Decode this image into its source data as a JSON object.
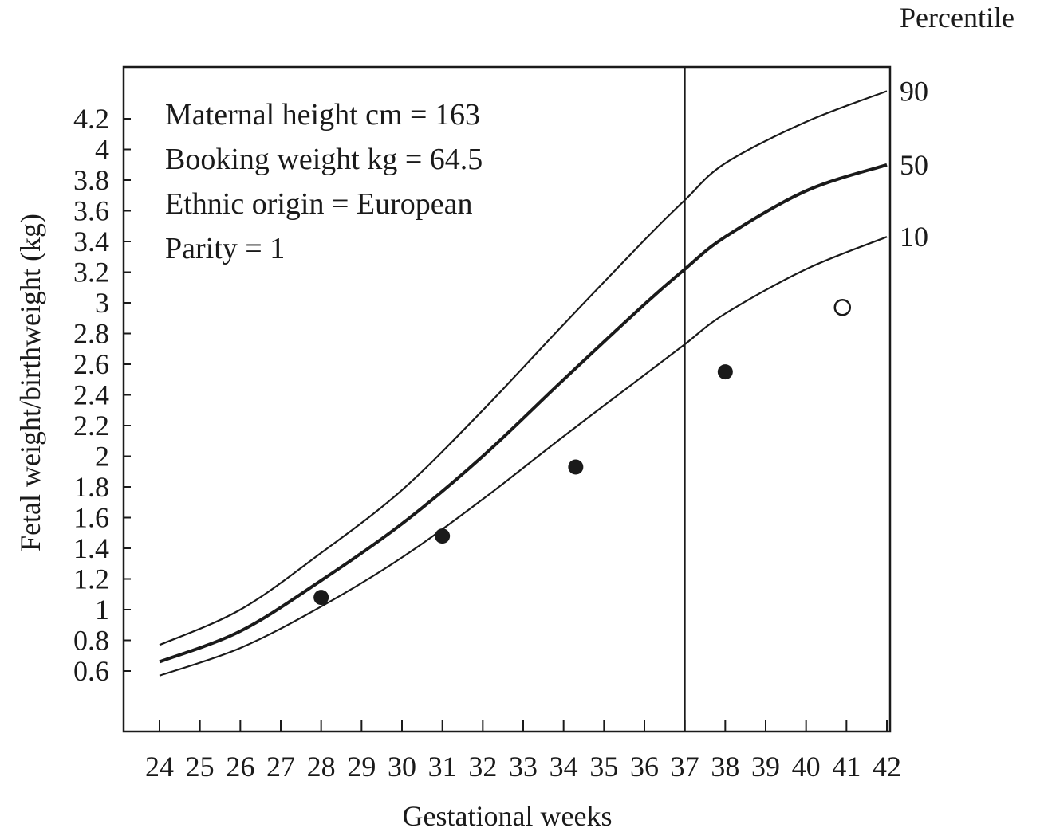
{
  "chart_data": {
    "type": "line",
    "xlabel": "Gestational weeks",
    "ylabel": "Fetal weight/birthweight (kg)",
    "right_axis_title": "Percentile",
    "x_ticks": [
      24,
      25,
      26,
      27,
      28,
      29,
      30,
      31,
      32,
      33,
      34,
      35,
      36,
      37,
      38,
      39,
      40,
      41,
      42
    ],
    "y_ticks": [
      0.6,
      0.8,
      1,
      1.2,
      1.4,
      1.6,
      1.8,
      2,
      2.2,
      2.4,
      2.6,
      2.8,
      3,
      3.2,
      3.4,
      3.6,
      3.8,
      4,
      4.2
    ],
    "y_tick_labels": [
      "0.6",
      "0.8",
      "1",
      "1.2",
      "1.4",
      "1.6",
      "1.8",
      "2",
      "2.2",
      "2.4",
      "2.6",
      "2.8",
      "3",
      "3.2",
      "3.4",
      "3.6",
      "3.8",
      "4",
      "4.2"
    ],
    "xlim": [
      24,
      42
    ],
    "grid": false,
    "annotations": [
      "Maternal height cm = 163",
      "Booking weight kg = 64.5",
      "Ethnic origin = European",
      "Parity = 1"
    ],
    "vertical_line_x": 37,
    "x": [
      24,
      26,
      28,
      30,
      32,
      34,
      36,
      37,
      38,
      40,
      42
    ],
    "series": [
      {
        "name": "90",
        "values": [
          0.77,
          1.0,
          1.37,
          1.78,
          2.3,
          2.86,
          3.41,
          3.67,
          3.91,
          4.18,
          4.38
        ]
      },
      {
        "name": "50",
        "values": [
          0.66,
          0.86,
          1.19,
          1.56,
          2.0,
          2.5,
          2.99,
          3.22,
          3.43,
          3.73,
          3.9
        ]
      },
      {
        "name": "10",
        "values": [
          0.57,
          0.75,
          1.02,
          1.34,
          1.72,
          2.13,
          2.53,
          2.73,
          2.93,
          3.22,
          3.43
        ]
      }
    ],
    "points": [
      {
        "x": 28,
        "y": 1.08,
        "style": "filled"
      },
      {
        "x": 31,
        "y": 1.48,
        "style": "filled"
      },
      {
        "x": 34.3,
        "y": 1.93,
        "style": "filled"
      },
      {
        "x": 38,
        "y": 2.55,
        "style": "filled"
      },
      {
        "x": 40.9,
        "y": 2.97,
        "style": "open"
      }
    ],
    "colors": {
      "line": "#1a1a1a",
      "background": "#ffffff"
    }
  }
}
